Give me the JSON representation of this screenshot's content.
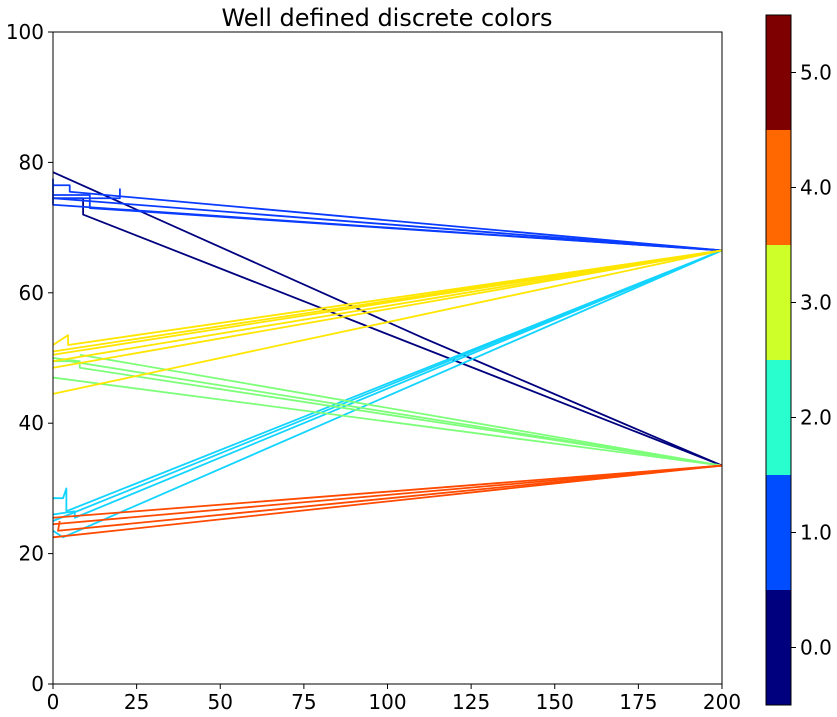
{
  "chart_data": {
    "type": "line",
    "title": "Well defined discrete colors",
    "xlabel": "",
    "ylabel": "",
    "xlim": [
      0,
      200
    ],
    "ylim": [
      0,
      100
    ],
    "x_ticks": [
      0,
      25,
      50,
      75,
      100,
      125,
      150,
      175,
      200
    ],
    "y_ticks": [
      0,
      20,
      40,
      60,
      80,
      100
    ],
    "grid": false,
    "colorbar": {
      "range": [
        -0.5,
        5.5
      ],
      "ticks": [
        0,
        1,
        2,
        3,
        4,
        5
      ],
      "tick_labels": [
        "0.0",
        "1.0",
        "2.0",
        "3.0",
        "4.0",
        "5.0"
      ],
      "bins": [
        {
          "value": 0,
          "color": "#00007f"
        },
        {
          "value": 1,
          "color": "#004cff"
        },
        {
          "value": 2,
          "color": "#29ffce"
        },
        {
          "value": 3,
          "color": "#ceff29"
        },
        {
          "value": 4,
          "color": "#ff6800"
        },
        {
          "value": 5,
          "color": "#7f0000"
        }
      ]
    },
    "series": [
      {
        "category": 0,
        "color": "#00007f",
        "points": [
          [
            0,
            78.5
          ],
          [
            111,
            53
          ],
          [
            200,
            33.5
          ]
        ]
      },
      {
        "category": 0,
        "color": "#00007f",
        "points": [
          [
            0,
            74.5
          ],
          [
            9,
            74.5
          ],
          [
            9,
            72
          ],
          [
            200,
            33.5
          ]
        ]
      },
      {
        "category": 1,
        "color": "#0a3cff",
        "points": [
          [
            0,
            77.5
          ],
          [
            0,
            73.5
          ],
          [
            200,
            66.5
          ]
        ]
      },
      {
        "category": 1,
        "color": "#0a3cff",
        "points": [
          [
            0,
            76.5
          ],
          [
            5,
            76.5
          ],
          [
            5,
            75.5
          ],
          [
            200,
            66.5
          ]
        ]
      },
      {
        "category": 1,
        "color": "#0a3cff",
        "points": [
          [
            0,
            75
          ],
          [
            11,
            75
          ],
          [
            11,
            73
          ],
          [
            200,
            66.5
          ]
        ]
      },
      {
        "category": 1,
        "color": "#0a3cff",
        "points": [
          [
            20,
            76
          ],
          [
            20,
            74.5
          ],
          [
            0,
            74.5
          ],
          [
            200,
            66.5
          ]
        ]
      },
      {
        "category": 1.5,
        "color": "#12d4ff",
        "points": [
          [
            0,
            28.5
          ],
          [
            3,
            28.5
          ],
          [
            4,
            30
          ],
          [
            4,
            26.5
          ],
          [
            200,
            66.5
          ]
        ]
      },
      {
        "category": 1.5,
        "color": "#12d4ff",
        "points": [
          [
            0,
            26
          ],
          [
            6.5,
            26.5
          ],
          [
            6.5,
            25.5
          ],
          [
            200,
            66.5
          ]
        ]
      },
      {
        "category": 1.5,
        "color": "#12d4ff",
        "points": [
          [
            0,
            25
          ],
          [
            200,
            66.5
          ]
        ]
      },
      {
        "category": 1.5,
        "color": "#12d4ff",
        "points": [
          [
            0,
            23.5
          ],
          [
            3,
            22.5
          ],
          [
            200,
            66.5
          ]
        ]
      },
      {
        "category": 2.5,
        "color": "#7dff7a",
        "points": [
          [
            0,
            50
          ],
          [
            8,
            49.5
          ],
          [
            8,
            48.5
          ],
          [
            200,
            33.5
          ]
        ]
      },
      {
        "category": 2.5,
        "color": "#7dff7a",
        "points": [
          [
            8,
            50.5
          ],
          [
            200,
            33.5
          ]
        ]
      },
      {
        "category": 2.5,
        "color": "#7dff7a",
        "points": [
          [
            0,
            49.5
          ],
          [
            5,
            49.5
          ],
          [
            200,
            33.5
          ]
        ]
      },
      {
        "category": 2.5,
        "color": "#7dff7a",
        "points": [
          [
            0,
            47
          ],
          [
            200,
            33.5
          ]
        ]
      },
      {
        "category": 3.2,
        "color": "#ffe600",
        "points": [
          [
            0,
            52
          ],
          [
            4.5,
            53.5
          ],
          [
            4.5,
            52
          ],
          [
            200,
            66.5
          ]
        ]
      },
      {
        "category": 3.2,
        "color": "#ffe600",
        "points": [
          [
            0,
            51
          ],
          [
            200,
            66.5
          ]
        ]
      },
      {
        "category": 3.2,
        "color": "#ffe600",
        "points": [
          [
            0,
            50.5
          ],
          [
            200,
            66.5
          ]
        ]
      },
      {
        "category": 3.2,
        "color": "#ffe600",
        "points": [
          [
            0,
            49.5
          ],
          [
            200,
            66.5
          ]
        ]
      },
      {
        "category": 3.2,
        "color": "#ffe600",
        "points": [
          [
            0,
            48.5
          ],
          [
            200,
            66.5
          ]
        ]
      },
      {
        "category": 3.2,
        "color": "#ffe600",
        "points": [
          [
            0,
            44.5
          ],
          [
            200,
            66.5
          ]
        ]
      },
      {
        "category": 4,
        "color": "#ff4a00",
        "points": [
          [
            0,
            25.5
          ],
          [
            200,
            33.5
          ]
        ]
      },
      {
        "category": 4,
        "color": "#ff4a00",
        "points": [
          [
            0,
            24.5
          ],
          [
            200,
            33.5
          ]
        ]
      },
      {
        "category": 4,
        "color": "#ff4a00",
        "points": [
          [
            2,
            25
          ],
          [
            1.5,
            23.5
          ],
          [
            200,
            33.5
          ]
        ]
      },
      {
        "category": 4,
        "color": "#ff4a00",
        "points": [
          [
            0,
            22.5
          ],
          [
            200,
            33.5
          ]
        ]
      }
    ]
  }
}
